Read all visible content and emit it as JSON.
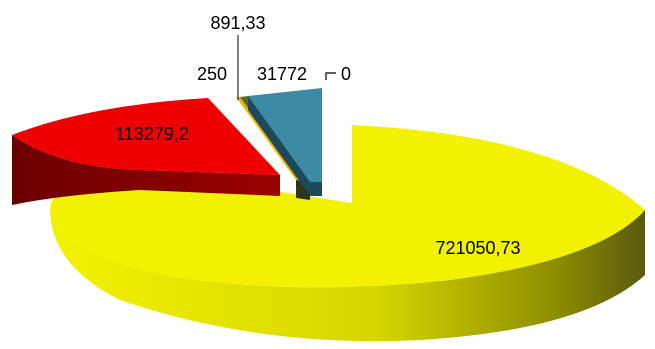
{
  "chart_data": {
    "type": "pie",
    "title": "",
    "values": [
      721050.73,
      113279.2,
      891.33,
      250,
      31772,
      0
    ],
    "labels": [
      "721050,73",
      "113279,2",
      "891,33",
      "250",
      "31772",
      "0"
    ],
    "colors": [
      "#f2f200",
      "#ee0000",
      "#f0b400",
      "#5e6a2c",
      "#3d8aa5",
      "#3d8aa5"
    ],
    "dark_colors": [
      "#6a6a00",
      "#6e0000",
      "#8a6400",
      "#2e3514",
      "#1c4a5a",
      "#1c4a5a"
    ],
    "exploded": true,
    "three_d": true,
    "legend": "none"
  }
}
